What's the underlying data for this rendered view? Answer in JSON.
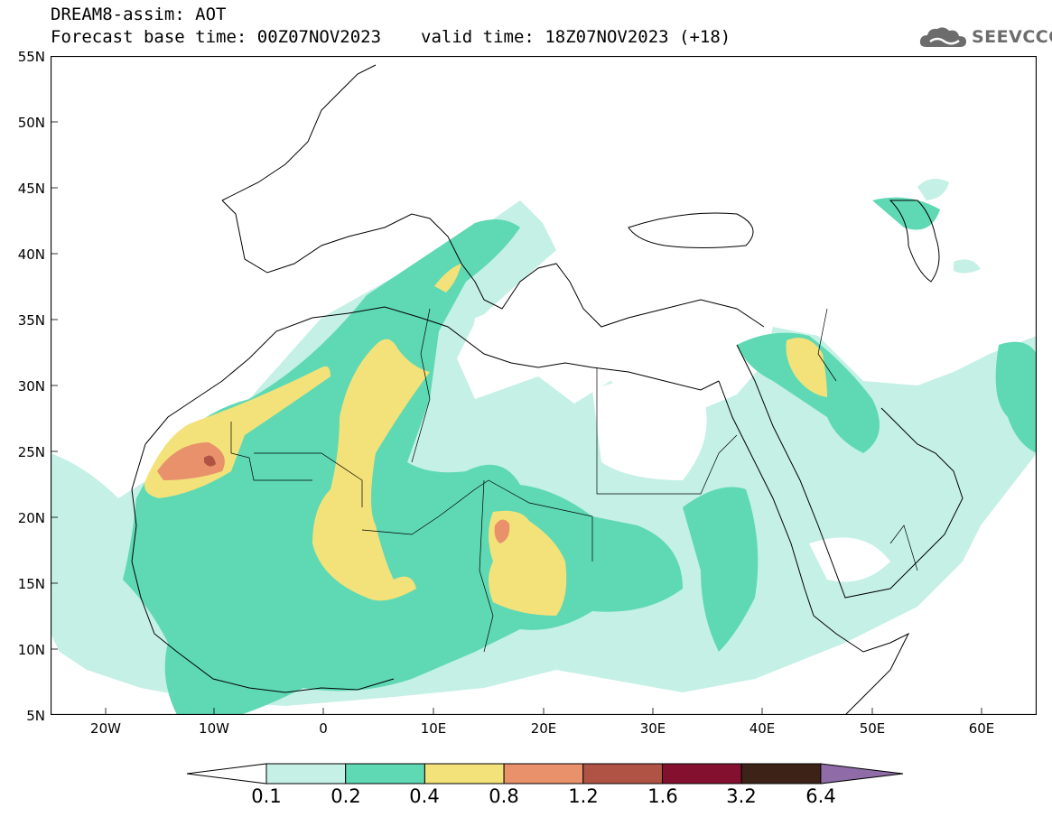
{
  "header": {
    "line1": "DREAM8-assim: AOT",
    "base_time": "Forecast base time: 00Z07NOV2023",
    "valid_time": "valid time: 18Z07NOV2023 (+18)",
    "logo_text": "SEEVCCC"
  },
  "axes": {
    "lat_labels": [
      "55N",
      "50N",
      "45N",
      "40N",
      "35N",
      "30N",
      "25N",
      "20N",
      "15N",
      "10N",
      "5N"
    ],
    "lon_labels": [
      "20W",
      "10W",
      "0",
      "10E",
      "20E",
      "30E",
      "40E",
      "50E",
      "60E"
    ],
    "lat_range": [
      5,
      55
    ],
    "lon_range": [
      -25,
      65
    ]
  },
  "legend": {
    "levels": [
      "0.1",
      "0.2",
      "0.4",
      "0.8",
      "1.2",
      "1.6",
      "3.2",
      "6.4"
    ],
    "colors": [
      "#ffffff",
      "#c4f0e6",
      "#5ed9b3",
      "#f3e27a",
      "#e9916b",
      "#b05345",
      "#82102e",
      "#3d2317",
      "#8f6ca8"
    ]
  }
}
